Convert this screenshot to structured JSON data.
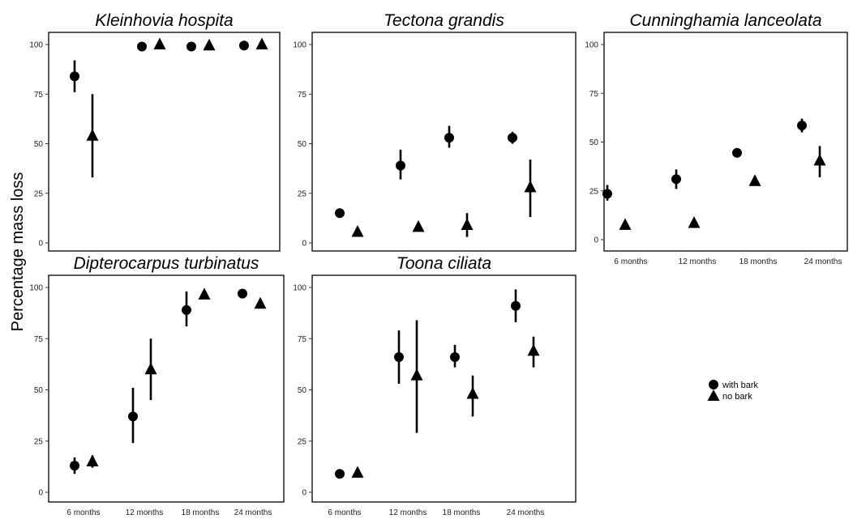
{
  "chart_data": {
    "type": "scatter",
    "y_axis_title": "Percentage mass loss",
    "legend": {
      "placement": "right",
      "entries": [
        {
          "label": "with bark",
          "marker": "circle"
        },
        {
          "label": "no bark",
          "marker": "triangle"
        }
      ]
    },
    "colors": {
      "marker": "#000000",
      "frame": "#000000",
      "background": "#ffffff"
    },
    "panels": [
      {
        "title": "Kleinhovia hospita",
        "categories": [
          "6 months",
          "12 months",
          "18 months",
          "24 months"
        ],
        "show_x_tick_labels": false,
        "ylim": [
          0,
          100
        ],
        "yticks": [
          0,
          25,
          50,
          75,
          100
        ],
        "series": [
          {
            "name": "with bark",
            "marker": "circle",
            "values": [
              84,
              99,
              99,
              99.5
            ],
            "lower": [
              76,
              null,
              null,
              null
            ],
            "upper": [
              92,
              null,
              null,
              null
            ]
          },
          {
            "name": "no bark",
            "marker": "triangle",
            "values": [
              54,
              100,
              99.5,
              100
            ],
            "lower": [
              33,
              null,
              null,
              null
            ],
            "upper": [
              75,
              null,
              null,
              null
            ]
          }
        ]
      },
      {
        "title": "Tectona grandis",
        "categories": [
          "6 months",
          "12 months",
          "18 months",
          "24 months"
        ],
        "show_x_tick_labels": false,
        "ylim": [
          0,
          100
        ],
        "yticks": [
          0,
          25,
          50,
          75,
          100
        ],
        "series": [
          {
            "name": "with bark",
            "marker": "circle",
            "values": [
              15,
              39,
              53,
              53
            ],
            "lower": [
              null,
              32,
              48,
              50
            ],
            "upper": [
              null,
              47,
              59,
              56
            ]
          },
          {
            "name": "no bark",
            "marker": "triangle",
            "values": [
              5.5,
              8,
              9,
              28
            ],
            "lower": [
              null,
              null,
              3,
              13
            ],
            "upper": [
              null,
              null,
              15,
              42
            ]
          }
        ]
      },
      {
        "title": "Cunninghamia lanceolata",
        "categories": [
          "6 months",
          "12 months",
          "18 months",
          "24 months"
        ],
        "show_x_tick_labels": true,
        "ylim": [
          0,
          100
        ],
        "yticks": [
          0,
          25,
          50,
          75,
          100
        ],
        "series": [
          {
            "name": "with bark",
            "marker": "circle",
            "values": [
              23.5,
              31,
              44.5,
              58.5
            ],
            "lower": [
              20,
              26,
              null,
              55
            ],
            "upper": [
              28,
              36,
              null,
              62
            ]
          },
          {
            "name": "no bark",
            "marker": "triangle",
            "values": [
              7.5,
              8.5,
              30,
              40.5
            ],
            "lower": [
              null,
              null,
              null,
              32
            ],
            "upper": [
              null,
              null,
              null,
              48
            ]
          }
        ]
      },
      {
        "title": "Dipterocarpus turbinatus",
        "categories": [
          "6 months",
          "12 months",
          "18 months",
          "24 months"
        ],
        "show_x_tick_labels": true,
        "ylim": [
          0,
          100
        ],
        "yticks": [
          0,
          25,
          50,
          75,
          100
        ],
        "series": [
          {
            "name": "with bark",
            "marker": "circle",
            "values": [
              13,
              37,
              89,
              97
            ],
            "lower": [
              9,
              24,
              81,
              null
            ],
            "upper": [
              17,
              51,
              98,
              null
            ]
          },
          {
            "name": "no bark",
            "marker": "triangle",
            "values": [
              15,
              60,
              96.5,
              92
            ],
            "lower": [
              12,
              45,
              null,
              null
            ],
            "upper": [
              18,
              75,
              null,
              null
            ]
          }
        ]
      },
      {
        "title": "Toona ciliata",
        "categories": [
          "6 months",
          "12 months",
          "18 months",
          "24 months"
        ],
        "show_x_tick_labels": true,
        "ylim": [
          0,
          100
        ],
        "yticks": [
          0,
          25,
          50,
          75,
          100
        ],
        "series": [
          {
            "name": "with bark",
            "marker": "circle",
            "values": [
              9,
              66,
              66,
              91
            ],
            "lower": [
              null,
              53,
              61,
              83
            ],
            "upper": [
              null,
              79,
              72,
              99
            ]
          },
          {
            "name": "no bark",
            "marker": "triangle",
            "values": [
              9.5,
              57,
              48,
              69
            ],
            "lower": [
              null,
              29,
              37,
              61
            ],
            "upper": [
              null,
              84,
              57,
              76
            ]
          }
        ]
      }
    ]
  }
}
